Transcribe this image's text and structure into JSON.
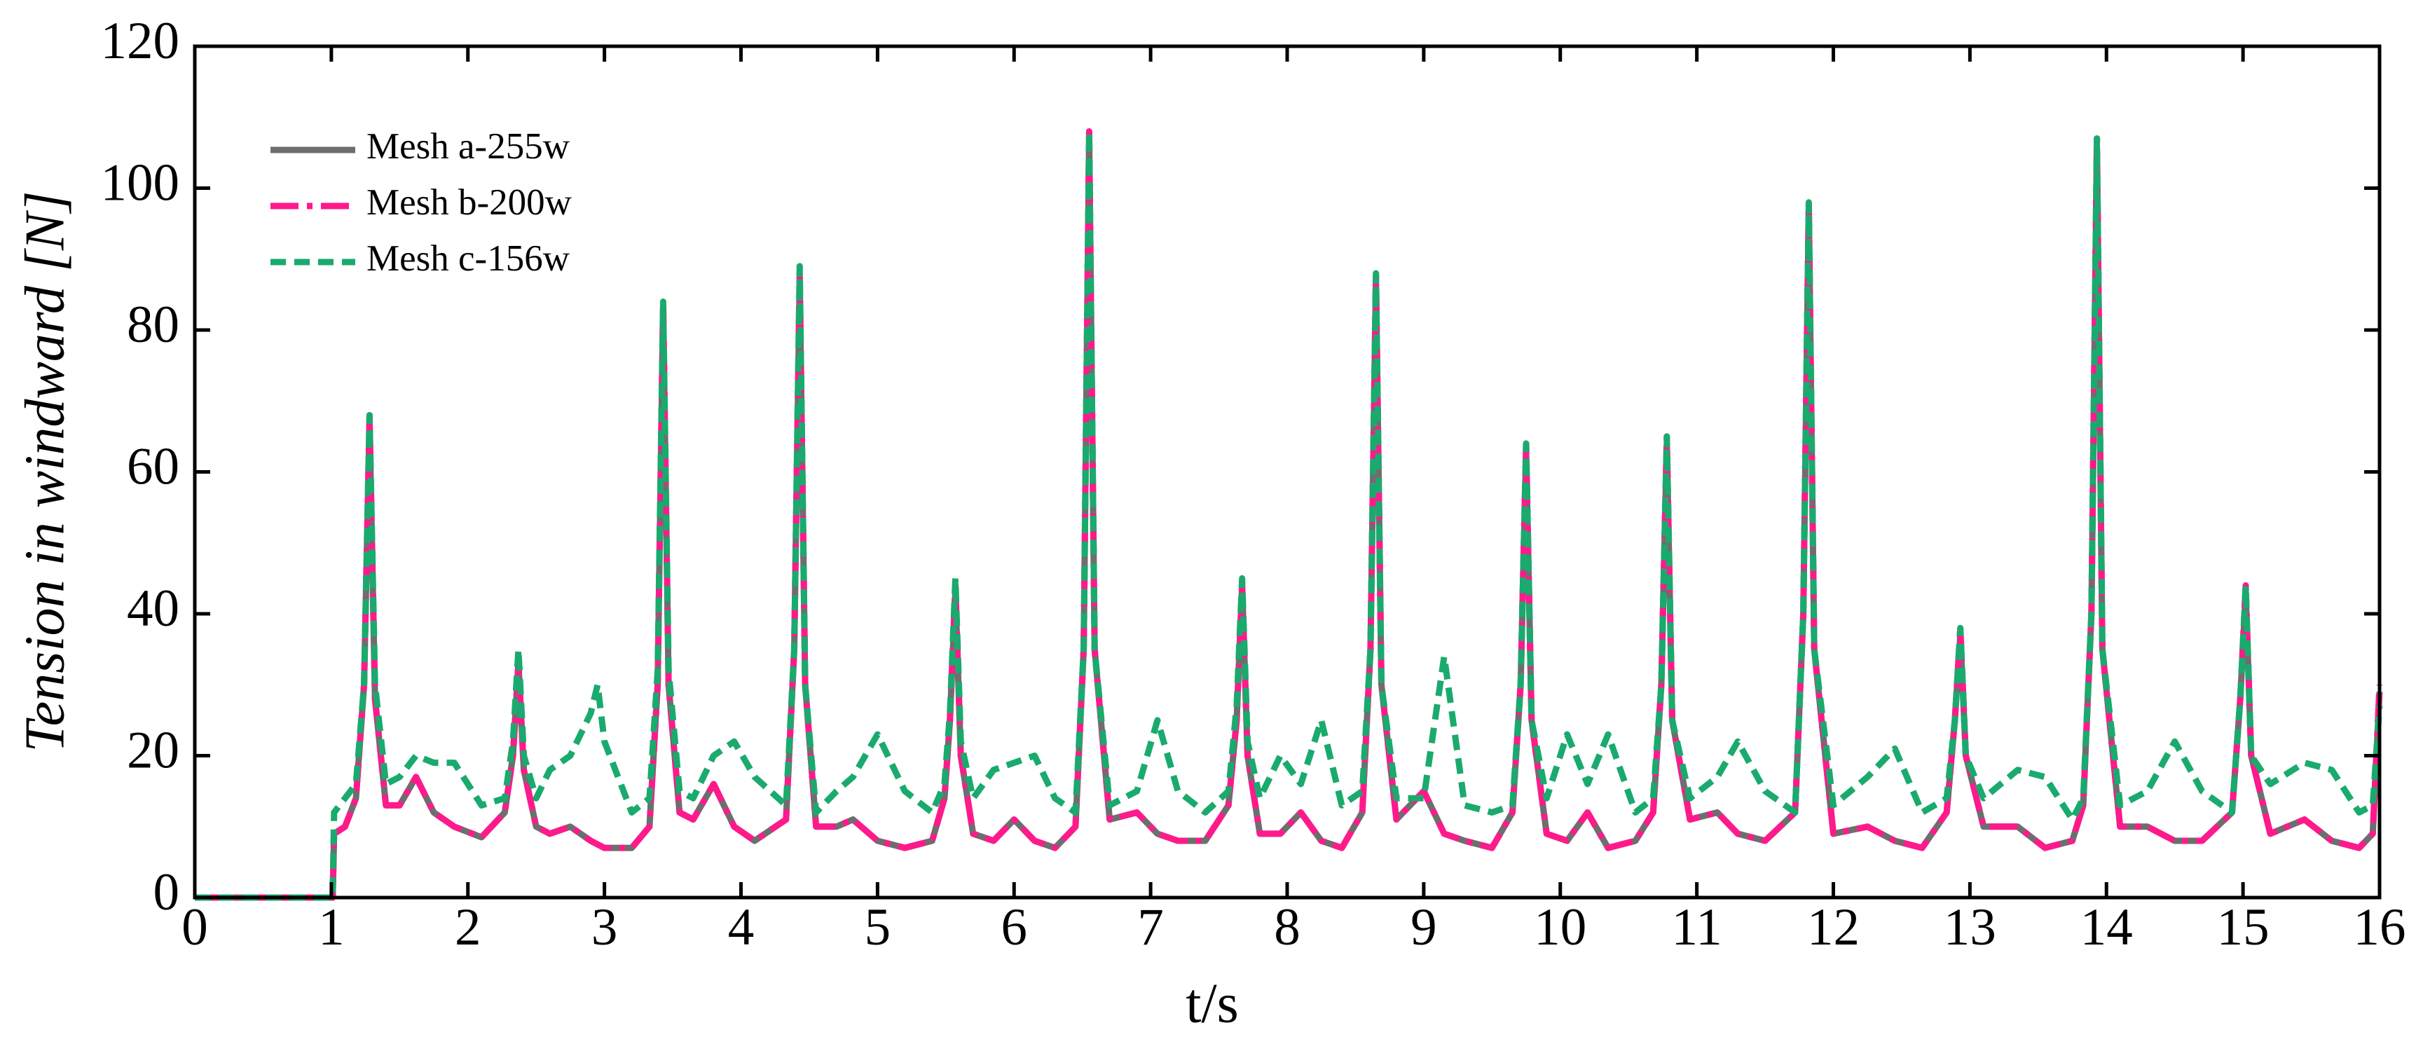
{
  "chart_data": {
    "type": "line",
    "xlabel": "t/s",
    "ylabel": "Tension in windward [N]",
    "xlim": [
      0,
      16
    ],
    "ylim": [
      0,
      120
    ],
    "xticks": [
      0,
      1,
      2,
      3,
      4,
      5,
      6,
      7,
      8,
      9,
      10,
      11,
      12,
      13,
      14,
      15,
      16
    ],
    "yticks": [
      0,
      20,
      40,
      60,
      80,
      100,
      120
    ],
    "legend": "upper left",
    "x": [
      0,
      1.01,
      1.02,
      1.1,
      1.18,
      1.24,
      1.28,
      1.32,
      1.4,
      1.5,
      1.62,
      1.75,
      1.9,
      2.1,
      2.27,
      2.33,
      2.37,
      2.41,
      2.5,
      2.6,
      2.75,
      2.9,
      2.95,
      3.0,
      3.2,
      3.33,
      3.39,
      3.43,
      3.47,
      3.55,
      3.65,
      3.8,
      3.95,
      4.1,
      4.33,
      4.39,
      4.43,
      4.47,
      4.55,
      4.7,
      4.82,
      5.0,
      5.2,
      5.4,
      5.49,
      5.53,
      5.57,
      5.61,
      5.7,
      5.85,
      6.0,
      6.15,
      6.3,
      6.45,
      6.51,
      6.55,
      6.59,
      6.7,
      6.9,
      7.05,
      7.2,
      7.4,
      7.57,
      7.63,
      7.67,
      7.71,
      7.8,
      7.95,
      8.1,
      8.25,
      8.4,
      8.55,
      8.61,
      8.65,
      8.69,
      8.8,
      9.0,
      9.15,
      9.3,
      9.5,
      9.65,
      9.71,
      9.75,
      9.79,
      9.9,
      10.05,
      10.2,
      10.35,
      10.55,
      10.68,
      10.74,
      10.78,
      10.82,
      10.95,
      11.15,
      11.3,
      11.5,
      11.72,
      11.78,
      11.82,
      11.86,
      12.0,
      12.25,
      12.45,
      12.65,
      12.83,
      12.89,
      12.93,
      12.97,
      13.1,
      13.35,
      13.55,
      13.75,
      13.83,
      13.89,
      13.93,
      13.97,
      14.1,
      14.3,
      14.5,
      14.7,
      14.92,
      14.98,
      15.02,
      15.06,
      15.2,
      15.45,
      15.65,
      15.85,
      15.95,
      16.0
    ],
    "series": [
      {
        "name": "Mesh a-255w",
        "color": "#6e6e6e",
        "style": "solid",
        "values": [
          0,
          0,
          9,
          10,
          14,
          30,
          67,
          28,
          13,
          13,
          17,
          12,
          10,
          8.5,
          12,
          20,
          33,
          18,
          10,
          9,
          10,
          8,
          7.5,
          7,
          7,
          10,
          30,
          83,
          30,
          12,
          11,
          16,
          10,
          8,
          11,
          35,
          87,
          30,
          10,
          10,
          11,
          8,
          7,
          8,
          14,
          25,
          43,
          20,
          9,
          8,
          11,
          8,
          7,
          10,
          35,
          107,
          35,
          11,
          12,
          9,
          8,
          8,
          13,
          25,
          44,
          20,
          9,
          9,
          12,
          8,
          7,
          12,
          35,
          87,
          30,
          11,
          15,
          9,
          8,
          7,
          12,
          30,
          63,
          25,
          9,
          8,
          12,
          7,
          8,
          12,
          30,
          64,
          25,
          11,
          12,
          9,
          8,
          12,
          40,
          97,
          35,
          9,
          10,
          8,
          7,
          12,
          25,
          37,
          20,
          10,
          10,
          7,
          8,
          13,
          40,
          106,
          35,
          10,
          10,
          8,
          8,
          12,
          28,
          43,
          20,
          9,
          11,
          8,
          7,
          9,
          29
        ]
      },
      {
        "name": "Mesh b-200w",
        "color": "#ff1a8c",
        "style": "dashdot",
        "values": [
          0,
          0,
          9,
          10,
          14,
          30,
          68,
          28,
          13,
          13,
          17,
          12,
          10,
          8.5,
          12,
          20,
          33,
          18,
          10,
          9,
          10,
          8,
          7.5,
          7,
          7,
          10,
          30,
          84,
          30,
          12,
          11,
          16,
          10,
          8,
          11,
          35,
          88,
          30,
          10,
          10,
          11,
          8,
          7,
          8,
          14,
          25,
          44,
          20,
          9,
          8,
          11,
          8,
          7,
          10,
          35,
          108,
          35,
          11,
          12,
          9,
          8,
          8,
          13,
          25,
          44,
          20,
          9,
          9,
          12,
          8,
          7,
          12,
          35,
          88,
          30,
          11,
          15,
          9,
          8,
          7,
          12,
          30,
          64,
          25,
          9,
          8,
          12,
          7,
          8,
          12,
          30,
          65,
          25,
          11,
          12,
          9,
          8,
          12,
          40,
          98,
          35,
          9,
          10,
          8,
          7,
          12,
          25,
          38,
          20,
          10,
          10,
          7,
          8,
          13,
          40,
          107,
          35,
          10,
          10,
          8,
          8,
          12,
          28,
          44,
          20,
          9,
          11,
          8,
          7,
          9,
          30
        ]
      },
      {
        "name": "Mesh c-156w",
        "color": "#1aaa6e",
        "style": "dashed",
        "values": [
          0,
          0,
          12,
          14,
          16,
          30,
          68,
          30,
          16,
          17,
          20,
          19,
          19,
          13,
          14,
          22,
          35,
          20,
          14,
          18,
          20,
          26,
          30,
          22,
          12,
          14,
          32,
          84,
          32,
          15,
          14,
          20,
          22,
          17,
          13,
          35,
          89,
          30,
          12,
          15,
          17,
          23,
          15,
          12,
          16,
          26,
          45,
          22,
          14,
          18,
          19,
          20,
          14,
          12,
          35,
          108,
          35,
          13,
          15,
          25,
          15,
          12,
          15,
          27,
          45,
          22,
          14,
          20,
          16,
          25,
          13,
          15,
          35,
          88,
          30,
          14,
          14,
          34,
          13,
          12,
          13,
          30,
          64,
          25,
          14,
          23,
          16,
          23,
          12,
          14,
          30,
          65,
          25,
          14,
          17,
          22,
          15,
          12,
          40,
          98,
          35,
          13,
          17,
          21,
          12,
          14,
          25,
          38,
          20,
          14,
          18,
          17,
          11,
          14,
          40,
          107,
          35,
          13,
          15,
          22,
          15,
          12,
          28,
          44,
          20,
          16,
          19,
          18,
          12,
          13,
          27
        ]
      }
    ]
  }
}
